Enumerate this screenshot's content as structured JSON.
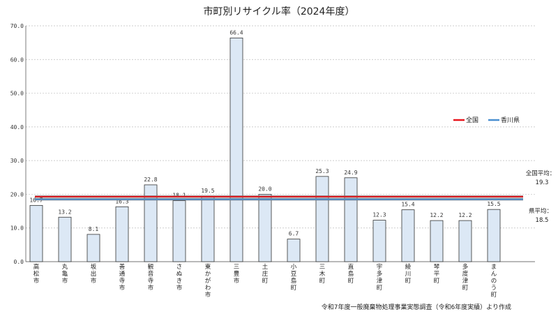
{
  "chart_data": {
    "type": "bar",
    "title": "市町別リサイクル率（2024年度）",
    "categories": [
      "高松市",
      "丸亀市",
      "坂出市",
      "善通寺市",
      "観音寺市",
      "さぬき市",
      "東かがわ市",
      "三豊市",
      "土庄町",
      "小豆島町",
      "三木町",
      "直島町",
      "宇多津町",
      "綾川町",
      "琴平町",
      "多度津町",
      "まんのう町"
    ],
    "values": [
      16.7,
      13.2,
      8.1,
      16.3,
      22.8,
      18.1,
      19.5,
      66.4,
      20.0,
      6.7,
      25.3,
      24.9,
      12.3,
      15.4,
      12.2,
      12.2,
      15.5
    ],
    "value_labels": [
      "16.7",
      "13.2",
      "8.1",
      "16.3",
      "22.8",
      "18.1",
      "19.5",
      "66.4",
      "20.0",
      "6.7",
      "25.3",
      "24.9",
      "12.3",
      "15.4",
      "12.2",
      "12.2",
      "15.5"
    ],
    "ylim": [
      0,
      70
    ],
    "yticks": [
      0,
      10,
      20,
      30,
      40,
      50,
      60,
      70
    ],
    "ytick_labels": [
      "0.0",
      "10.0",
      "20.0",
      "30.0",
      "40.0",
      "50.0",
      "60.0",
      "70.0"
    ],
    "grid": true,
    "legend_position": "right",
    "reference_lines": [
      {
        "name": "全国",
        "value": 19.3,
        "color": "#e8141c",
        "annotation_title": "全国平均：",
        "annotation_value": "19.3"
      },
      {
        "name": "香川県",
        "value": 18.5,
        "color": "#4a8fd0",
        "annotation_title": "県平均：",
        "annotation_value": "18.5"
      }
    ],
    "bar_fill": "#dce8f5",
    "bar_stroke": "#333333",
    "source": "令和7年度一般廃棄物処理事業実態調査（令和6年度実績）より作成"
  }
}
